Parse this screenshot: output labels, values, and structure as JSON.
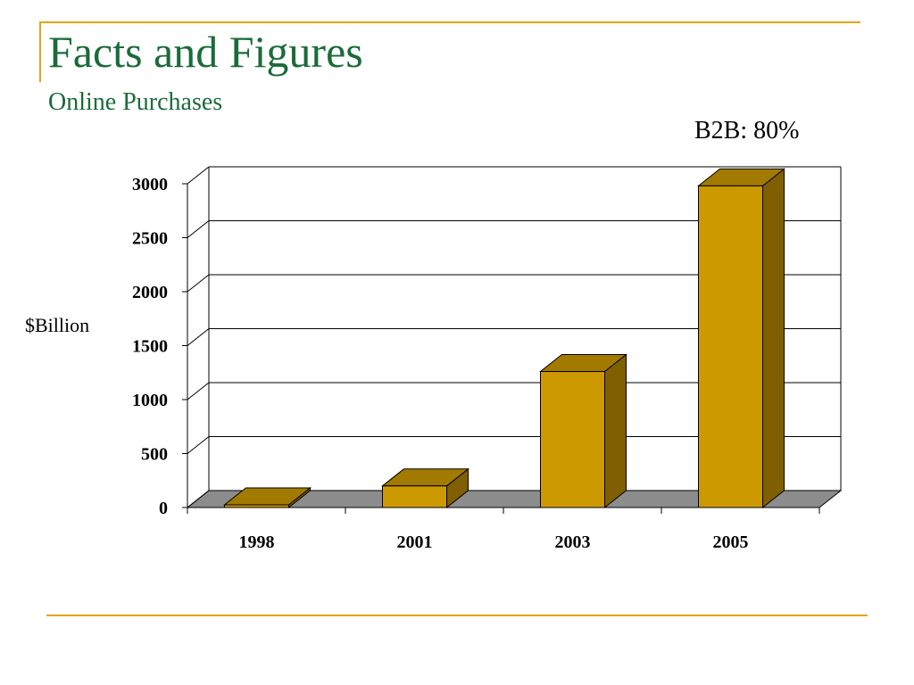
{
  "slide": {
    "title": "Facts and Figures",
    "subtitle": "Online Purchases",
    "annotation": "B2B: 80%"
  },
  "colors": {
    "title_green": "#1b6b3a",
    "accent_gold": "#e8a317",
    "bar_front": "#cc9900",
    "bar_top": "#a37a00",
    "bar_side": "#7f5f00",
    "floor": "#8c8c8c",
    "grid": "#000000"
  },
  "chart_data": {
    "type": "bar",
    "title": "",
    "xlabel": "",
    "ylabel": "$Billion",
    "categories": [
      "1998",
      "2001",
      "2003",
      "2005"
    ],
    "values": [
      15,
      200,
      1260,
      2980
    ],
    "ylim": [
      0,
      3000
    ],
    "yticks": [
      0,
      500,
      1000,
      1500,
      2000,
      2500,
      3000
    ],
    "grid": true,
    "style": "3d"
  }
}
